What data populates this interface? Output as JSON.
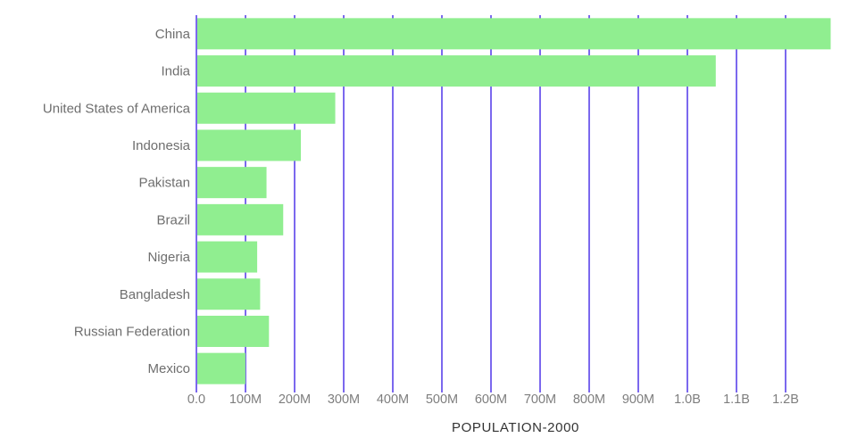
{
  "chart_data": {
    "type": "bar",
    "orientation": "horizontal",
    "title": "",
    "xlabel": "POPULATION-2000",
    "ylabel": "",
    "categories": [
      "China",
      "India",
      "United States of America",
      "Indonesia",
      "Pakistan",
      "Brazil",
      "Nigeria",
      "Bangladesh",
      "Russian Federation",
      "Mexico"
    ],
    "values": [
      1290,
      1056,
      281,
      211,
      141,
      175,
      122,
      128,
      146,
      98
    ],
    "unit": "millions of people",
    "xlim": [
      0,
      1300
    ],
    "xticks": [
      0,
      100,
      200,
      300,
      400,
      500,
      600,
      700,
      800,
      900,
      1000,
      1100,
      1200
    ],
    "xtick_labels": [
      "0.0",
      "100M",
      "200M",
      "300M",
      "400M",
      "500M",
      "600M",
      "700M",
      "800M",
      "900M",
      "1.0B",
      "1.1B",
      "1.2B"
    ],
    "grid": true,
    "legend": false,
    "colors": {
      "bar": "#90EE90",
      "grid": "#7B68EE",
      "category_label": "#6E6E6E",
      "tick_label": "#7E7E7E",
      "axis_title": "#333333",
      "background": "#FFFFFF"
    }
  }
}
